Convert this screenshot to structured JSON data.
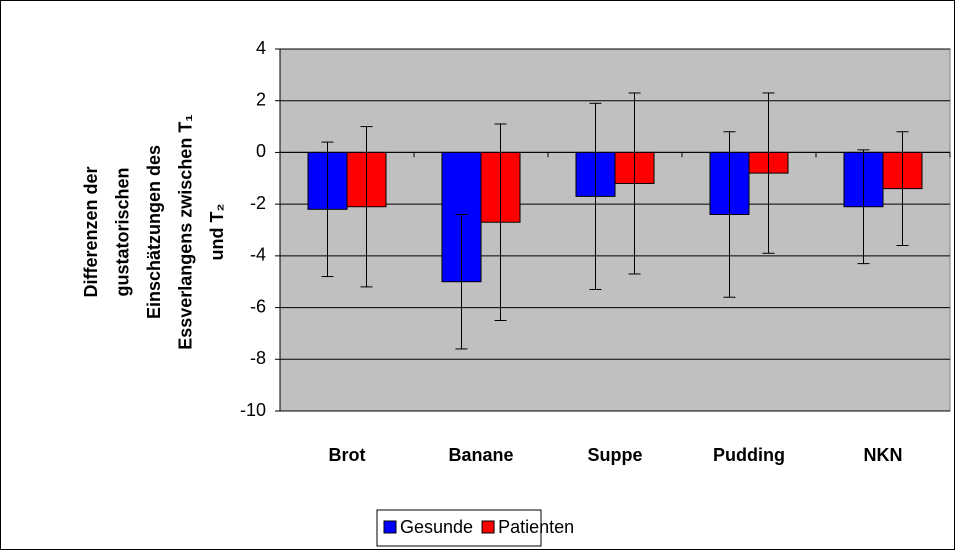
{
  "chart_data": {
    "type": "bar",
    "ylabel": [
      "Differenzen der",
      "gustatorischen",
      "Einschätzungen des",
      "Essverlangens zwischen T₁",
      "und T₂"
    ],
    "categories": [
      "Brot",
      "Banane",
      "Suppe",
      "Pudding",
      "NKN"
    ],
    "series": [
      {
        "name": "Gesunde",
        "color": "#0000ff",
        "values": [
          -2.2,
          -5.0,
          -1.7,
          -2.4,
          -2.1
        ],
        "errors": [
          2.6,
          2.6,
          3.6,
          3.2,
          2.2
        ]
      },
      {
        "name": "Patienten",
        "color": "#ff0000",
        "values": [
          -2.1,
          -2.7,
          -1.2,
          -0.8,
          -1.4
        ],
        "errors": [
          3.1,
          3.8,
          3.5,
          3.1,
          2.2
        ]
      }
    ],
    "ylim": [
      -10,
      4
    ],
    "yticks": [
      -10,
      -8,
      -6,
      -4,
      -2,
      0,
      2,
      4
    ],
    "grid": true,
    "legend": "bottom"
  }
}
